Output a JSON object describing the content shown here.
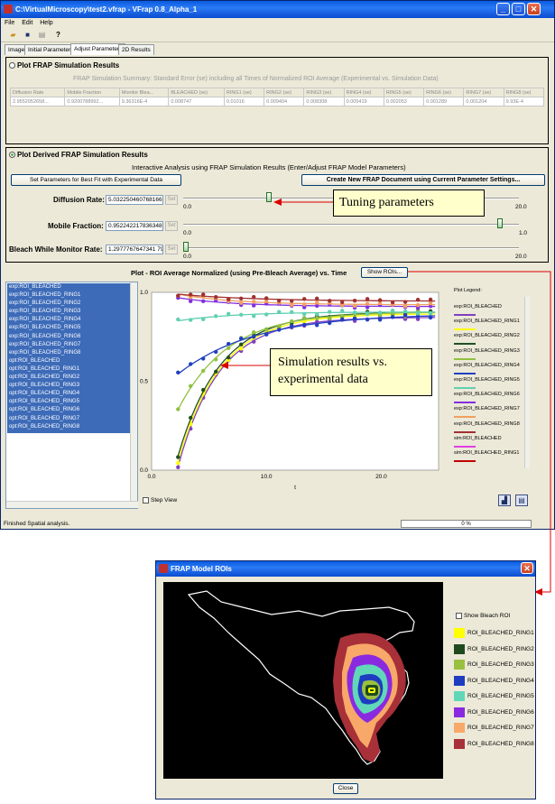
{
  "main_window": {
    "title": "C:\\VirtualMicroscopy\\test2.vfrap - VFrap 0.8_Alpha_1",
    "menu": [
      "File",
      "Edit",
      "Help"
    ],
    "tabs": [
      "Image",
      "Initial Parameters",
      "Adjust Parameters",
      "2D Results"
    ],
    "active_tab": "Adjust Parameters"
  },
  "plot_frap_section": {
    "title": "Plot FRAP Simulation Results",
    "summary_caption": "FRAP Simulation Summary: Standard Error (se) including all Times of Normalized ROI Average (Experimental vs. Simulation Data)",
    "headers": [
      "Diffusion Rate",
      "Mobile Fraction",
      "Monitor Blea...",
      "BLEACHED (se)",
      "RING1 (se)",
      "RING2 (se)",
      "RING3 (se)",
      "RING4 (se)",
      "RING5 (se)",
      "RING6 (se)",
      "RING7 (se)",
      "RING8 (se)"
    ],
    "values": [
      "2.9552052658...",
      "0.9200788992...",
      "9.36316E-4",
      "0.008747",
      "0.01016",
      "0.009404",
      "0.008308",
      "0.005419",
      "0.002053",
      "0.001289",
      "0.001204",
      "9.93E-4"
    ]
  },
  "derived_section": {
    "title": "Plot Derived FRAP Simulation Results",
    "subtitle": "Interactive Analysis using FRAP Simulation Results (Enter/Adjust FRAP Model Parameters)",
    "set_best_fit_button": "Set Parameters for Best Fit with Experimental Data",
    "create_doc_button": "Create New FRAP Document using Current Parameter Settings...",
    "diffusion_label": "Diffusion Rate:",
    "diffusion_value": "5.032250460768166",
    "mobile_label": "Mobile Fraction:",
    "mobile_value": "0.952242217836348",
    "bleach_label": "Bleach While Monitor Rate:",
    "bleach_value": "1.2977767647341 79E-4",
    "set_label": "Set",
    "slider_min": "0.0",
    "diffusion_max": "20.0",
    "mobile_max": "1.0",
    "bleach_max": "20.0",
    "diffusion_fraction": 0.25,
    "mobile_fraction": 0.95,
    "bleach_fraction": 0.0
  },
  "plot_section": {
    "title": "Plot -  ROI Average Normalized (using Pre-Bleach Average) vs. Time",
    "show_rois_button": "Show ROIs...",
    "step_view_label": "Step View",
    "legend_title": "Plot Legend:",
    "legend_items": [
      "exp:ROI_BLEACHED",
      "exp:ROI_BLEACHED_RING1",
      "exp:ROI_BLEACHED_RING2",
      "exp:ROI_BLEACHED_RING3",
      "exp:ROI_BLEACHED_RING4",
      "exp:ROI_BLEACHED_RING5",
      "exp:ROI_BLEACHED_RING6",
      "exp:ROI_BLEACHED_RING7",
      "exp:ROI_BLEACHED_RING8",
      "sim:ROI_BLEACHED",
      "sim:ROI_BLEACHED_RING1"
    ],
    "legend_colors": [
      "#8040c0",
      "#ffff00",
      "#205020",
      "#90c040",
      "#2040c0",
      "#60d0b0",
      "#8030e0",
      "#f0a060",
      "#a03030",
      "#e040e0",
      "#c00000"
    ],
    "roi_list": [
      "exp:ROI_BLEACHED",
      "exp:ROI_BLEACHED_RING1",
      "exp:ROI_BLEACHED_RING2",
      "exp:ROI_BLEACHED_RING3",
      "exp:ROI_BLEACHED_RING4",
      "exp:ROI_BLEACHED_RING5",
      "exp:ROI_BLEACHED_RING6",
      "exp:ROI_BLEACHED_RING7",
      "exp:ROI_BLEACHED_RING8",
      "opt:ROI_BLEACHED",
      "opt:ROI_BLEACHED_RING1",
      "opt:ROI_BLEACHED_RING2",
      "opt:ROI_BLEACHED_RING3",
      "opt:ROI_BLEACHED_RING4",
      "opt:ROI_BLEACHED_RING5",
      "opt:ROI_BLEACHED_RING6",
      "opt:ROI_BLEACHED_RING7",
      "opt:ROI_BLEACHED_RING8"
    ]
  },
  "chart_data": {
    "type": "scatter",
    "title": "",
    "xlabel": "t",
    "ylabel": "",
    "xlim": [
      0,
      25
    ],
    "ylim": [
      0,
      1.0
    ],
    "x_ticks": [
      "0.0",
      "10.0",
      "20.0"
    ],
    "y_ticks": [
      "0.0",
      "0.5",
      "1.0"
    ],
    "grid": false,
    "legend_position": "right",
    "series": [
      {
        "color": "#8040c0",
        "t0": 2.3,
        "start": 0.02,
        "end": 0.86,
        "k": 0.28
      },
      {
        "color": "#ffff00",
        "t0": 2.3,
        "start": 0.05,
        "end": 0.88,
        "k": 0.27
      },
      {
        "color": "#205020",
        "t0": 2.3,
        "start": 0.08,
        "end": 0.89,
        "k": 0.27
      },
      {
        "color": "#90c040",
        "t0": 2.3,
        "start": 0.34,
        "end": 0.89,
        "k": 0.23
      },
      {
        "color": "#2040c0",
        "t0": 2.3,
        "start": 0.54,
        "end": 0.88,
        "k": 0.15
      },
      {
        "color": "#60d0b0",
        "t0": 2.3,
        "start": 0.84,
        "end": 0.89,
        "k": 0.2
      },
      {
        "color": "#8030e0",
        "t0": 2.3,
        "start": 0.97,
        "end": 0.92,
        "k": 0.2
      },
      {
        "color": "#f0a060",
        "t0": 2.3,
        "start": 0.99,
        "end": 0.93,
        "k": 0.2
      },
      {
        "color": "#a03030",
        "t0": 2.3,
        "start": 0.99,
        "end": 0.95,
        "k": 0.15
      }
    ]
  },
  "callouts": {
    "tuning": "Tuning parameters",
    "simulation": "Simulation results vs. experimental data"
  },
  "status": {
    "text": "Finished Spatial analysis.",
    "progress": "0 %"
  },
  "roi_dialog": {
    "title": "FRAP Model ROIs",
    "show_bleach_label": "Show Bleach ROI",
    "legend": [
      {
        "name": "ROI_BLEACHED_RING1",
        "color": "#ffff00"
      },
      {
        "name": "ROI_BLEACHED_RING2",
        "color": "#1e4a1e"
      },
      {
        "name": "ROI_BLEACHED_RING3",
        "color": "#9ac040"
      },
      {
        "name": "ROI_BLEACHED_RING4",
        "color": "#1e3cc0"
      },
      {
        "name": "ROI_BLEACHED_RING5",
        "color": "#60d8b8"
      },
      {
        "name": "ROI_BLEACHED_RING6",
        "color": "#8a2ae0"
      },
      {
        "name": "ROI_BLEACHED_RING7",
        "color": "#f8a868"
      },
      {
        "name": "ROI_BLEACHED_RING8",
        "color": "#a83038"
      }
    ],
    "close_button": "Close"
  }
}
